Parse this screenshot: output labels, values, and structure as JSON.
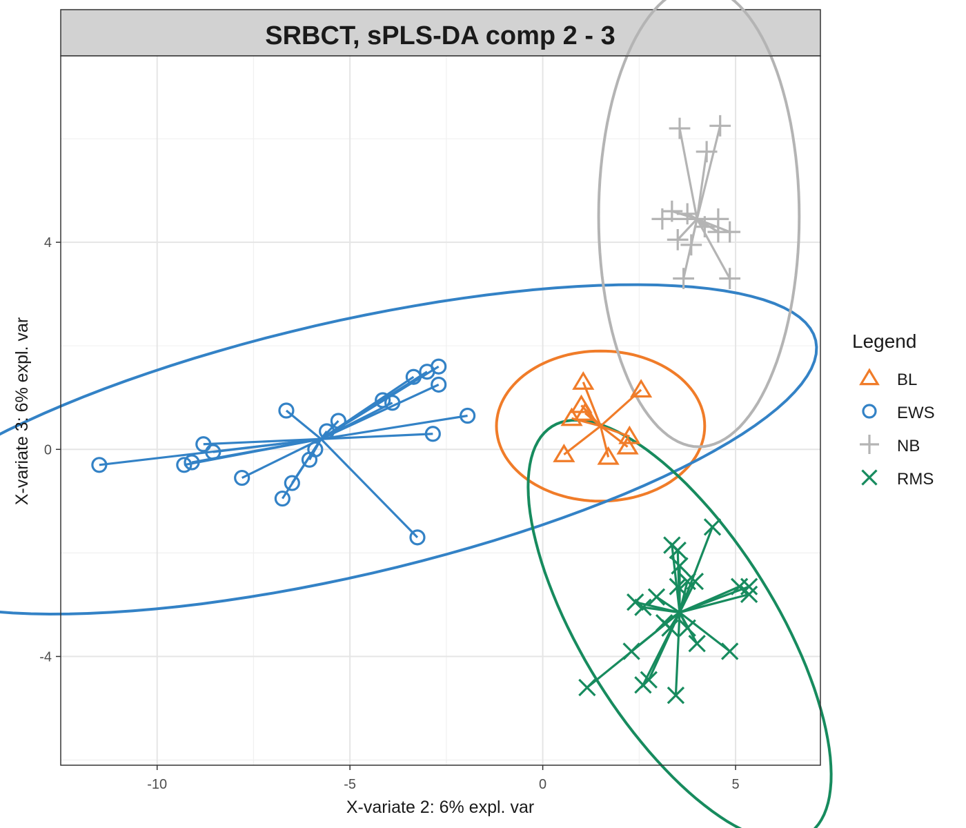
{
  "chart_data": {
    "type": "scatter",
    "title": "SRBCT, sPLS-DA comp 2 - 3",
    "xlabel": "X-variate 2: 6% expl. var",
    "ylabel": "X-variate 3: 6% expl. var",
    "xlim": [
      -12.5,
      7.2
    ],
    "ylim": [
      -6.1,
      7.6
    ],
    "xticks": [
      -10,
      -5,
      0,
      5
    ],
    "yticks": [
      -4,
      0,
      4
    ],
    "grid": true,
    "legend": {
      "title": "Legend",
      "position": "right"
    },
    "series": [
      {
        "name": "BL",
        "color": "#F07C29",
        "marker": "triangle",
        "centroid": [
          1.5,
          0.45
        ],
        "ellipse": {
          "cx": 1.5,
          "cy": 0.45,
          "rx": 2.7,
          "ry": 1.45,
          "angle": 0
        },
        "points": [
          [
            1.05,
            1.3
          ],
          [
            2.55,
            1.15
          ],
          [
            1.0,
            0.85
          ],
          [
            1.1,
            0.7
          ],
          [
            0.75,
            0.6
          ],
          [
            2.25,
            0.25
          ],
          [
            2.2,
            0.05
          ],
          [
            0.55,
            -0.1
          ],
          [
            1.7,
            -0.15
          ]
        ]
      },
      {
        "name": "EWS",
        "color": "#3382C6",
        "marker": "circle",
        "centroid": [
          -5.75,
          0.2
        ],
        "ellipse": {
          "cx": -5.15,
          "cy": 0.0,
          "rx": 12.55,
          "ry": 2.45,
          "angle": 13
        },
        "points": [
          [
            -11.5,
            -0.3
          ],
          [
            -9.3,
            -0.3
          ],
          [
            -9.1,
            -0.25
          ],
          [
            -8.8,
            0.1
          ],
          [
            -8.55,
            -0.05
          ],
          [
            -7.8,
            -0.55
          ],
          [
            -6.65,
            0.75
          ],
          [
            -6.75,
            -0.95
          ],
          [
            -6.5,
            -0.65
          ],
          [
            -6.05,
            -0.2
          ],
          [
            -5.9,
            0.0
          ],
          [
            -5.6,
            0.35
          ],
          [
            -5.3,
            0.55
          ],
          [
            -4.15,
            0.95
          ],
          [
            -3.9,
            0.9
          ],
          [
            -3.35,
            1.4
          ],
          [
            -3.0,
            1.5
          ],
          [
            -2.7,
            1.6
          ],
          [
            -2.7,
            1.25
          ],
          [
            -2.85,
            0.3
          ],
          [
            -1.95,
            0.65
          ],
          [
            -3.25,
            -1.7
          ]
        ]
      },
      {
        "name": "NB",
        "color": "#B4B4B4",
        "marker": "plus",
        "centroid": [
          4.0,
          4.45
        ],
        "ellipse": {
          "cx": 4.05,
          "cy": 4.5,
          "rx": 2.6,
          "ry": 4.45,
          "angle": 0
        },
        "points": [
          [
            3.55,
            6.2
          ],
          [
            4.6,
            6.25
          ],
          [
            4.25,
            5.75
          ],
          [
            3.35,
            4.6
          ],
          [
            3.1,
            4.45
          ],
          [
            3.75,
            4.55
          ],
          [
            4.55,
            4.45
          ],
          [
            4.2,
            4.3
          ],
          [
            4.55,
            4.2
          ],
          [
            4.85,
            4.2
          ],
          [
            3.5,
            4.05
          ],
          [
            3.85,
            3.95
          ],
          [
            3.65,
            3.3
          ],
          [
            4.85,
            3.3
          ]
        ]
      },
      {
        "name": "RMS",
        "color": "#178B5E",
        "marker": "x",
        "centroid": [
          3.55,
          -3.15
        ],
        "ellipse": {
          "cx": 3.55,
          "cy": -3.5,
          "rx": 2.5,
          "ry": 4.65,
          "angle": 32
        },
        "points": [
          [
            4.4,
            -1.5
          ],
          [
            3.5,
            -1.95
          ],
          [
            3.35,
            -1.85
          ],
          [
            3.55,
            -2.25
          ],
          [
            3.95,
            -2.55
          ],
          [
            3.75,
            -2.55
          ],
          [
            3.5,
            -2.65
          ],
          [
            2.95,
            -2.85
          ],
          [
            2.4,
            -2.95
          ],
          [
            2.6,
            -3.05
          ],
          [
            5.1,
            -2.65
          ],
          [
            5.35,
            -2.65
          ],
          [
            5.35,
            -2.8
          ],
          [
            3.15,
            -3.35
          ],
          [
            3.3,
            -3.45
          ],
          [
            3.75,
            -3.45
          ],
          [
            4.0,
            -3.75
          ],
          [
            2.3,
            -3.9
          ],
          [
            4.85,
            -3.9
          ],
          [
            1.15,
            -4.6
          ],
          [
            2.6,
            -4.55
          ],
          [
            2.75,
            -4.45
          ],
          [
            3.45,
            -4.75
          ]
        ]
      }
    ]
  }
}
